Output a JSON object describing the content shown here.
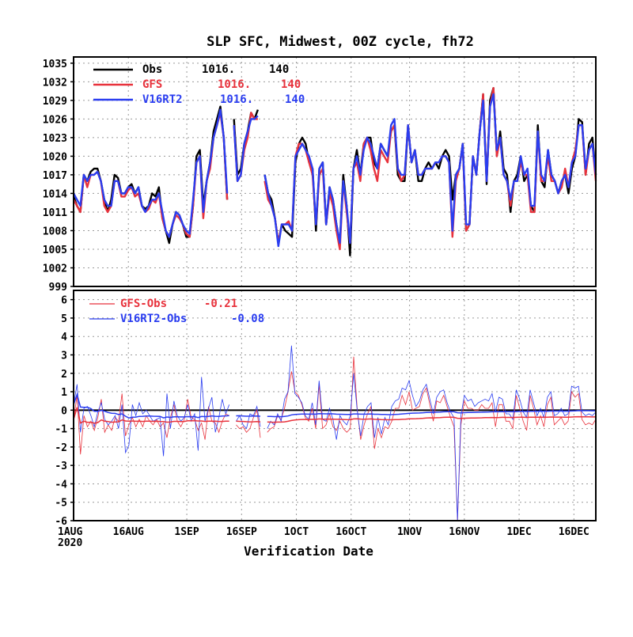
{
  "chart_data": [
    {
      "type": "line",
      "title": "SLP SFC, Midwest, 00Z cycle, fh72",
      "xlabel": "Verification Date",
      "x_ticks": [
        "1AUG",
        "16AUG",
        "1SEP",
        "16SEP",
        "1OCT",
        "16OCT",
        "1NOV",
        "16NOV",
        "1DEC",
        "16DEC"
      ],
      "x_tick_year": "2020",
      "x_tick_days": [
        0,
        15,
        31,
        46,
        61,
        76,
        92,
        107,
        122,
        137
      ],
      "xlim": [
        0,
        143
      ],
      "ylim": [
        999,
        1036
      ],
      "y_ticks": [
        999,
        1002,
        1005,
        1008,
        1011,
        1014,
        1017,
        1020,
        1023,
        1026,
        1029,
        1032,
        1035
      ],
      "grid": true,
      "legend_position": "top-left",
      "series": [
        {
          "name": "Obs",
          "stat1": "1016.",
          "stat2": "140",
          "color": "#000000",
          "values": [
            1013.5,
            1012,
            1011,
            1017,
            1016,
            1017.5,
            1018,
            1018,
            1016,
            1013,
            1011,
            1013,
            1017,
            1016.5,
            1014,
            1014,
            1015,
            1015.5,
            1014,
            1015,
            1012,
            1011.5,
            1012,
            1014,
            1013.5,
            1015,
            1010,
            1008,
            1006,
            1009,
            1011,
            1010.5,
            1009,
            1007,
            1007,
            1012,
            1020,
            1021,
            1012,
            1016,
            1019,
            1024,
            1026,
            1028,
            1023,
            1013,
            null,
            1026,
            1017,
            1018,
            1022,
            1024,
            1027,
            1026,
            1027.5,
            null,
            1017,
            1014,
            1013,
            1010,
            1006,
            1009,
            1008,
            1007.5,
            1007,
            1019,
            1022,
            1023,
            1022,
            1019,
            1018,
            1008,
            1018,
            1019,
            1009,
            1015,
            1013,
            1009,
            1006,
            1017,
            1012,
            1004,
            1018,
            1021,
            1017,
            1022,
            1023,
            1023,
            1019,
            1018,
            1022,
            1021,
            1020,
            1024,
            1025,
            1017,
            1016,
            1016,
            1025,
            1019,
            1021,
            1016,
            1016,
            1018,
            1019,
            1018,
            1019,
            1018,
            1020,
            1021,
            1020,
            1013,
            1017,
            1018,
            1022,
            1008,
            1009,
            1020,
            1017,
            1024,
            1030,
            1015.5,
            1029,
            1031,
            1020,
            1024,
            1018,
            1017,
            1011,
            1016,
            1017,
            1020,
            1016,
            1017,
            1012,
            1011,
            1025,
            1016,
            1015,
            1021,
            1017,
            1016,
            1014,
            1016,
            1017,
            1014,
            1018,
            1020,
            1026,
            1025.5,
            1017,
            1022,
            1023,
            1017
          ]
        },
        {
          "name": "GFS",
          "stat1": "1016.",
          "stat2": "140",
          "color": "#e8323c",
          "values": [
            1013,
            1012,
            1011,
            1017,
            1015,
            1017,
            1017,
            1017.5,
            1016,
            1012,
            1011,
            1012,
            1016,
            1016,
            1013.5,
            1013.5,
            1014.5,
            1015,
            1013.5,
            1014,
            1012,
            1011,
            1011.5,
            1013,
            1012.5,
            1014,
            1010,
            1008,
            1007,
            1009,
            1010.5,
            1010,
            1009,
            1007.5,
            1007,
            1012,
            1019,
            1020,
            1010,
            1016,
            1018,
            1023,
            1025,
            1027,
            1023,
            1013,
            null,
            1025,
            1016,
            1017,
            1021,
            1023,
            1027,
            1026,
            1026,
            null,
            1016,
            1013,
            1012,
            1010,
            1006,
            1009,
            1009,
            1009.5,
            1008,
            1020,
            1022,
            1022,
            1021,
            1019,
            1017,
            1009,
            1017,
            1018,
            1009,
            1014,
            1012,
            1008,
            1005,
            1016,
            1011,
            1006,
            1018,
            1019,
            1016,
            1022,
            1023,
            1021,
            1018,
            1016,
            1021,
            1020,
            1019,
            1024,
            1025,
            1018,
            1016,
            1017,
            1025,
            1019,
            1021,
            1017,
            1017,
            1018,
            1018,
            1018,
            1019,
            1019,
            1020,
            1020,
            1019,
            1007,
            1016,
            1018,
            1022,
            1008,
            1009,
            1020,
            1017,
            1024,
            1030,
            1016,
            1028,
            1031,
            1020,
            1023,
            1017,
            1016,
            1012,
            1016,
            1016,
            1019,
            1017,
            1017,
            1011,
            1011,
            1024,
            1016,
            1016,
            1020,
            1016,
            1016,
            1014,
            1015,
            1018,
            1015,
            1019,
            1021,
            1025,
            1025,
            1017,
            1021,
            1022,
            1016
          ]
        },
        {
          "name": "V16RT2",
          "stat1": "1016.",
          "stat2": "140",
          "color": "#2a3df0",
          "values": [
            1014,
            1013,
            1012,
            1017,
            1016,
            1017,
            1017,
            1017.5,
            1016,
            1013,
            1012,
            1012,
            1016,
            1016,
            1014,
            1014,
            1015,
            1015,
            1014,
            1015,
            1012,
            1011,
            1012,
            1013,
            1013,
            1014,
            1011,
            1008,
            1007,
            1009,
            1011,
            1010.5,
            1009,
            1008,
            1007.5,
            1013,
            1019,
            1020,
            1011,
            1016,
            1019,
            1023,
            1025,
            1027.5,
            1023,
            1014,
            null,
            1025,
            1016,
            1017,
            1022,
            1024,
            1026,
            1026,
            1026.5,
            null,
            1017,
            1014,
            1012,
            1010,
            1005.5,
            1009,
            1009,
            1009,
            1008,
            1020,
            1021,
            1022,
            1021,
            1020,
            1018,
            1009,
            1018,
            1019,
            1009,
            1015,
            1013,
            1009,
            1006,
            1016,
            1012,
            1006,
            1018,
            1020,
            1017,
            1021,
            1023,
            1022,
            1020,
            1018,
            1022,
            1021,
            1020,
            1025,
            1026,
            1018,
            1017,
            1017,
            1025,
            1019,
            1021,
            1017,
            1017,
            1018,
            1018,
            1018,
            1019,
            1019,
            1020,
            1020,
            1019,
            1008,
            1017,
            1018,
            1022,
            1009,
            1009,
            1020,
            1017,
            1024,
            1029,
            1016,
            1028,
            1030,
            1021,
            1023,
            1017,
            1016,
            1013,
            1016,
            1016,
            1020,
            1017,
            1018,
            1012,
            1012,
            1024,
            1017,
            1016,
            1021,
            1017,
            1016,
            1014,
            1016,
            1017,
            1015,
            1019,
            1020,
            1025,
            1025,
            1018,
            1021,
            1022,
            1017
          ]
        }
      ]
    },
    {
      "type": "line",
      "xlabel": "Verification Date",
      "xlim": [
        0,
        143
      ],
      "ylim": [
        -6,
        6.5
      ],
      "y_ticks": [
        -6,
        -5,
        -4,
        -3,
        -2,
        -1,
        0,
        1,
        2,
        3,
        4,
        5,
        6
      ],
      "grid": true,
      "legend_position": "top-left",
      "series": [
        {
          "name": "GFS-Obs",
          "stat": "-0.21",
          "color": "#e8323c",
          "values": [
            -0.5,
            0.8,
            -2.4,
            -0.3,
            -0.9,
            -0.6,
            -1.1,
            -0.4,
            0.6,
            -1.2,
            -0.8,
            -1.1,
            -0.4,
            -0.6,
            0.9,
            -1.4,
            -0.8,
            -0.4,
            -0.9,
            -0.5,
            -0.9,
            -0.3,
            -0.6,
            -0.8,
            -0.5,
            -0.9,
            -0.7,
            -1.5,
            -0.4,
            0.3,
            -0.6,
            -0.9,
            -0.5,
            0.6,
            -0.4,
            -0.5,
            -1.1,
            -0.7,
            -1.6,
            0.2,
            -0.6,
            -0.7,
            -1.2,
            -0.6,
            -0.2,
            -0.3,
            null,
            -0.8,
            -1.0,
            -0.9,
            -1.2,
            -1.0,
            -0.4,
            0.0,
            -1.5,
            null,
            -1.2,
            -1.0,
            -0.9,
            -0.3,
            -0.5,
            0.1,
            1.0,
            2.1,
            1.0,
            0.8,
            0.3,
            -0.4,
            -0.6,
            0.1,
            -1.0,
            1.4,
            -1.0,
            -0.8,
            -0.2,
            -0.9,
            -1.1,
            -0.6,
            -1.0,
            -1.2,
            -1.0,
            2.9,
            0.1,
            -1.6,
            -0.8,
            -0.2,
            0.2,
            -2.1,
            -1.0,
            -1.5,
            -0.9,
            -1.0,
            -0.6,
            0.1,
            0.1,
            0.8,
            0.3,
            1.0,
            0.0,
            0.1,
            0.2,
            0.9,
            1.2,
            0.3,
            -0.6,
            0.5,
            0.4,
            0.8,
            0.2,
            -0.4,
            -0.9,
            -6.0,
            -0.8,
            0.5,
            0.1,
            0.1,
            0.0,
            0.0,
            0.3,
            0.1,
            0.1,
            0.4,
            -0.9,
            0.3,
            0.3,
            -0.6,
            -0.6,
            -1.0,
            0.8,
            0.1,
            -0.6,
            -1.1,
            0.8,
            0.1,
            -0.8,
            -0.3,
            -0.9,
            0.3,
            0.7,
            -0.8,
            -0.6,
            -0.4,
            -0.8,
            -0.6,
            1.0,
            0.7,
            0.9,
            -0.5,
            -0.8,
            -0.7,
            -0.8,
            -0.5
          ]
        },
        {
          "name": "V16RT2-Obs",
          "stat": "-0.08",
          "color": "#2a3df0",
          "values": [
            0.3,
            1.4,
            -1.2,
            0.1,
            0.2,
            -0.3,
            -0.9,
            -0.1,
            0.4,
            -0.5,
            -0.8,
            -0.6,
            -0.3,
            -1.0,
            0.3,
            -2.3,
            -1.9,
            0.3,
            -0.3,
            0.4,
            -0.2,
            0.0,
            -0.3,
            -0.6,
            -0.5,
            -0.4,
            -2.5,
            0.9,
            -1.0,
            0.5,
            -0.3,
            -0.6,
            -0.4,
            0.3,
            -0.6,
            -0.2,
            -2.2,
            1.8,
            -0.6,
            0.1,
            0.7,
            -1.2,
            -0.4,
            0.6,
            -0.2,
            0.3,
            null,
            -0.6,
            -0.3,
            -0.8,
            -1.0,
            -0.2,
            -0.3,
            0.2,
            -0.9,
            null,
            -1.0,
            -0.6,
            -0.8,
            -0.2,
            -0.6,
            0.6,
            1.0,
            3.5,
            0.9,
            0.7,
            0.4,
            -0.3,
            -0.5,
            0.4,
            -0.8,
            1.6,
            -0.5,
            -0.6,
            0.1,
            -0.5,
            -1.6,
            -0.3,
            -0.6,
            -0.8,
            -0.3,
            2.0,
            0.0,
            -1.4,
            -0.2,
            0.2,
            0.4,
            -1.5,
            -0.4,
            -1.3,
            -0.4,
            -0.8,
            0.2,
            0.5,
            0.6,
            1.2,
            1.1,
            1.6,
            0.8,
            0.2,
            0.5,
            1.1,
            1.4,
            0.6,
            -0.2,
            0.7,
            1.0,
            1.1,
            0.4,
            -0.1,
            -0.4,
            -6.0,
            -0.3,
            0.8,
            0.5,
            0.6,
            0.2,
            0.4,
            0.5,
            0.6,
            0.5,
            0.9,
            -0.1,
            0.7,
            0.6,
            -0.2,
            -0.2,
            -0.5,
            1.1,
            0.6,
            -0.1,
            -0.4,
            1.1,
            0.4,
            -0.3,
            0.1,
            -0.4,
            0.7,
            1.0,
            -0.3,
            -0.2,
            0.1,
            -0.3,
            -0.2,
            1.3,
            1.2,
            1.3,
            -0.1,
            -0.3,
            -0.2,
            -0.3,
            -0.1
          ]
        }
      ]
    }
  ]
}
